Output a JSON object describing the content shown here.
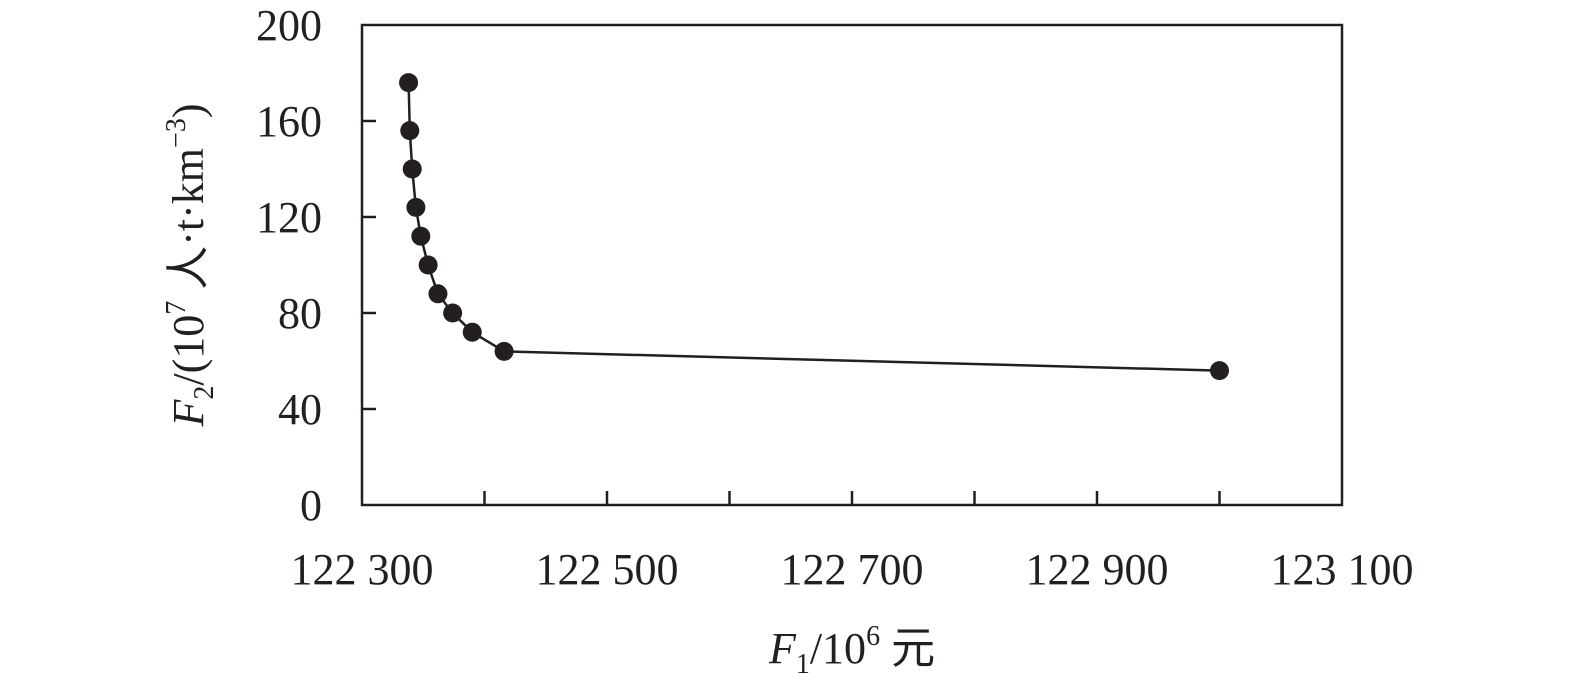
{
  "chart_data": {
    "type": "line",
    "xlabel": {
      "symbol": "F",
      "sub": "1",
      "prefix": "/10",
      "sup": "6",
      "unit": " 元"
    },
    "ylabel": {
      "symbol": "F",
      "sub": "2",
      "prefix": "/(10",
      "sup": "7",
      "unit": " 人·t·km",
      "unit_sup": "−3",
      "close": ")"
    },
    "xlim": [
      122300,
      123100
    ],
    "ylim": [
      0,
      200
    ],
    "x_ticks": [
      {
        "value": 122300,
        "label": "122 300"
      },
      {
        "value": 122400,
        "label": ""
      },
      {
        "value": 122500,
        "label": "122 500"
      },
      {
        "value": 122600,
        "label": ""
      },
      {
        "value": 122700,
        "label": "122 700"
      },
      {
        "value": 122800,
        "label": ""
      },
      {
        "value": 122900,
        "label": "122 900"
      },
      {
        "value": 123000,
        "label": ""
      },
      {
        "value": 123100,
        "label": "123 100"
      }
    ],
    "y_ticks": [
      {
        "value": 0,
        "label": "0"
      },
      {
        "value": 40,
        "label": "40"
      },
      {
        "value": 80,
        "label": "80"
      },
      {
        "value": 120,
        "label": "120"
      },
      {
        "value": 160,
        "label": "160"
      },
      {
        "value": 200,
        "label": "200"
      }
    ],
    "grid": false,
    "legend": "none",
    "series": [
      {
        "points": [
          {
            "x": 122338,
            "y": 176
          },
          {
            "x": 122339,
            "y": 156
          },
          {
            "x": 122341,
            "y": 140
          },
          {
            "x": 122344,
            "y": 124
          },
          {
            "x": 122348,
            "y": 112
          },
          {
            "x": 122354,
            "y": 100
          },
          {
            "x": 122362,
            "y": 88
          },
          {
            "x": 122374,
            "y": 80
          },
          {
            "x": 122390,
            "y": 72
          },
          {
            "x": 122416,
            "y": 64
          },
          {
            "x": 123000,
            "y": 56
          }
        ],
        "color": "#231f20"
      }
    ]
  }
}
